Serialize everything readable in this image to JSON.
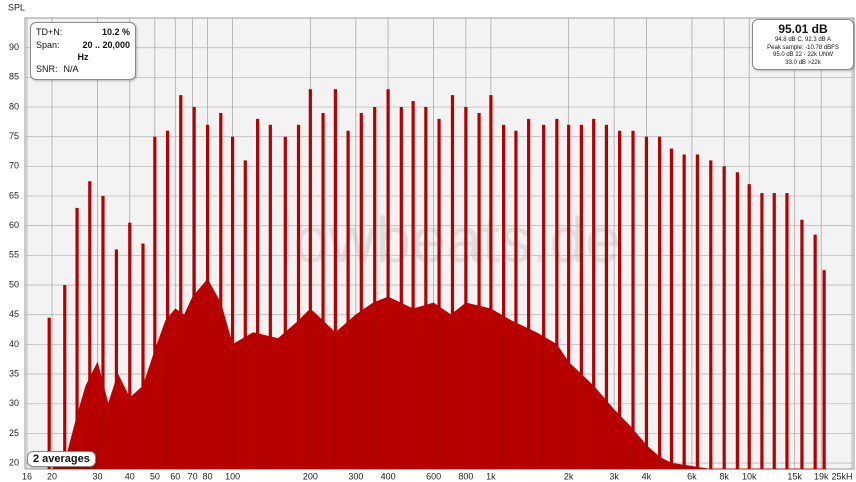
{
  "chart_data": {
    "type": "stem",
    "y_label": "SPL",
    "watermark": "lowbeats.de",
    "color": "#b30000",
    "floor_color": "#b80000",
    "xscale": "log",
    "grid": true,
    "xlim": [
      16,
      25000
    ],
    "ylim": [
      19,
      95
    ],
    "yticks": [
      20,
      25,
      30,
      35,
      40,
      45,
      50,
      55,
      60,
      65,
      70,
      75,
      80,
      85,
      90
    ],
    "xticks": [
      16,
      20,
      30,
      40,
      50,
      60,
      70,
      80,
      100,
      200,
      300,
      400,
      600,
      800,
      {
        "value": 1000,
        "label": "1k"
      },
      {
        "value": 2000,
        "label": "2k"
      },
      {
        "value": 3000,
        "label": "3k"
      },
      {
        "value": 4000,
        "label": "4k"
      },
      {
        "value": 6000,
        "label": "6k"
      },
      {
        "value": 8000,
        "label": "8k"
      },
      {
        "value": 10000,
        "label": "10k"
      },
      {
        "value": 15000,
        "label": "15k"
      },
      {
        "value": 19000,
        "label": "19k"
      },
      {
        "value": 25000,
        "label": "25kH"
      }
    ],
    "tones": {
      "x": [
        19.5,
        22.4,
        25,
        28,
        31.5,
        35.5,
        40,
        45,
        50,
        56,
        63,
        71,
        80,
        90,
        100,
        112,
        125,
        140,
        160,
        180,
        200,
        224,
        250,
        280,
        315,
        355,
        400,
        450,
        500,
        560,
        630,
        710,
        800,
        900,
        1000,
        1120,
        1250,
        1400,
        1600,
        1800,
        2000,
        2240,
        2500,
        2800,
        3150,
        3550,
        4000,
        4500,
        5000,
        5600,
        6300,
        7100,
        8000,
        9000,
        10000,
        11200,
        12500,
        14000,
        16000,
        18000,
        19500
      ],
      "values": [
        44.5,
        50,
        63,
        67.5,
        65,
        56,
        60.5,
        57,
        75,
        76,
        82,
        80,
        77,
        79,
        75,
        71,
        78,
        77,
        75,
        77,
        83,
        79,
        83,
        76,
        79,
        80,
        83,
        80,
        81,
        80,
        78,
        82,
        80,
        79,
        82,
        77,
        76,
        78,
        77,
        78,
        77,
        77,
        78,
        77,
        76,
        76,
        75,
        75,
        73,
        72,
        72,
        71,
        70,
        69,
        67,
        65.5,
        65.5,
        65.5,
        61,
        58.5,
        52.5
      ]
    },
    "floor": {
      "x": [
        20,
        23,
        25,
        27,
        30,
        33,
        36,
        40,
        45,
        50,
        55,
        60,
        65,
        70,
        80,
        90,
        100,
        120,
        150,
        180,
        200,
        250,
        300,
        350,
        400,
        500,
        600,
        700,
        800,
        1000,
        1200,
        1500,
        1800,
        2000,
        2500,
        3000,
        3500,
        4000,
        4500,
        5000,
        7000,
        10000,
        15000,
        20000
      ],
      "values": [
        19,
        22,
        28,
        33,
        37,
        30,
        35,
        31,
        33,
        39,
        44,
        46,
        45,
        48,
        51,
        47,
        40,
        42,
        41,
        44,
        46,
        42,
        45,
        47,
        48,
        46,
        47,
        45,
        47,
        46,
        44,
        42,
        40,
        37,
        33,
        29,
        26,
        23,
        21,
        20,
        19,
        19,
        19,
        19
      ]
    },
    "left_box": {
      "tdn_label": "TD+N:",
      "tdn_value": "10.2 %",
      "span_label": "Span:",
      "span_value": "20 .. 20,000",
      "span_unit": "Hz",
      "snr_label": "SNR:",
      "snr_value": "N/A"
    },
    "right_box": {
      "level": "95.01 dB",
      "weightings": "94.8 dB C, 92.3 dB A",
      "peak": "Peak sample: -10.78 dBFS",
      "unweighted": "95.0 dB 22 - 22k UNW",
      "ultrasonic": "33.0 dB >22k"
    },
    "averages": "2 averages"
  }
}
